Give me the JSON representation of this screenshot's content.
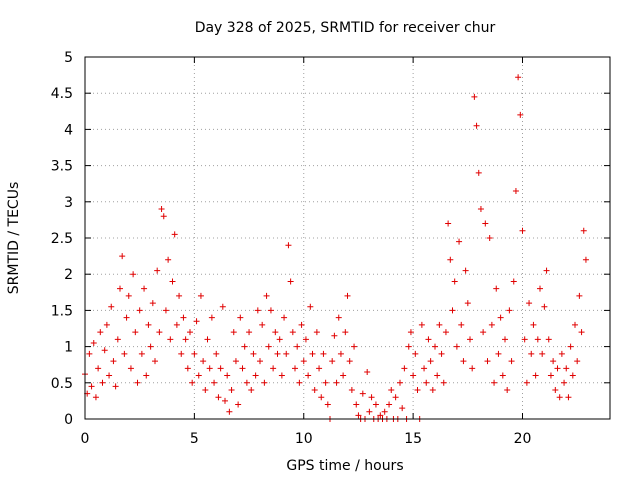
{
  "chart_data": {
    "type": "scatter",
    "title": "Day 328 of 2025, SRMTID for receiver chur",
    "xlabel": "GPS time / hours",
    "ylabel": "SRMTID / TECUs",
    "xlim": [
      0,
      24
    ],
    "ylim": [
      0,
      5
    ],
    "x_ticks": [
      0,
      5,
      10,
      15,
      20
    ],
    "x_tick_labels": [
      "0",
      "5",
      "10",
      "15",
      "20"
    ],
    "y_ticks": [
      0,
      0.5,
      1,
      1.5,
      2,
      2.5,
      3,
      3.5,
      4,
      4.5,
      5
    ],
    "y_tick_labels": [
      "0",
      "0.5",
      "1",
      "1.5",
      "2",
      "2.5",
      "3",
      "3.5",
      "4",
      "4.5",
      "5"
    ],
    "grid": true,
    "marker": "+",
    "color": "#e00000",
    "series": [
      {
        "name": "SRMTID",
        "points": [
          [
            0.0,
            0.62
          ],
          [
            0.1,
            0.35
          ],
          [
            0.2,
            0.9
          ],
          [
            0.3,
            0.45
          ],
          [
            0.4,
            1.05
          ],
          [
            0.5,
            0.3
          ],
          [
            0.6,
            0.7
          ],
          [
            0.7,
            1.2
          ],
          [
            0.8,
            0.5
          ],
          [
            0.9,
            0.95
          ],
          [
            1.0,
            1.3
          ],
          [
            1.1,
            0.6
          ],
          [
            1.2,
            1.55
          ],
          [
            1.3,
            0.8
          ],
          [
            1.4,
            0.45
          ],
          [
            1.5,
            1.1
          ],
          [
            1.6,
            1.8
          ],
          [
            1.7,
            2.25
          ],
          [
            1.8,
            0.9
          ],
          [
            1.9,
            1.4
          ],
          [
            2.0,
            1.7
          ],
          [
            2.1,
            0.7
          ],
          [
            2.2,
            2.0
          ],
          [
            2.3,
            1.2
          ],
          [
            2.4,
            0.5
          ],
          [
            2.5,
            1.5
          ],
          [
            2.6,
            0.9
          ],
          [
            2.7,
            1.8
          ],
          [
            2.8,
            0.6
          ],
          [
            2.9,
            1.3
          ],
          [
            3.0,
            1.0
          ],
          [
            3.1,
            1.6
          ],
          [
            3.2,
            0.8
          ],
          [
            3.3,
            2.05
          ],
          [
            3.4,
            1.2
          ],
          [
            3.5,
            2.9
          ],
          [
            3.6,
            2.8
          ],
          [
            3.7,
            1.5
          ],
          [
            3.8,
            2.2
          ],
          [
            3.9,
            1.1
          ],
          [
            4.0,
            1.9
          ],
          [
            4.1,
            2.55
          ],
          [
            4.2,
            1.3
          ],
          [
            4.3,
            1.7
          ],
          [
            4.4,
            0.9
          ],
          [
            4.5,
            1.4
          ],
          [
            4.6,
            1.1
          ],
          [
            4.7,
            0.7
          ],
          [
            4.8,
            1.2
          ],
          [
            4.9,
            0.5
          ],
          [
            5.0,
            0.9
          ],
          [
            5.1,
            1.35
          ],
          [
            5.2,
            0.6
          ],
          [
            5.3,
            1.7
          ],
          [
            5.4,
            0.8
          ],
          [
            5.5,
            0.4
          ],
          [
            5.6,
            1.1
          ],
          [
            5.7,
            0.7
          ],
          [
            5.8,
            1.4
          ],
          [
            5.9,
            0.5
          ],
          [
            6.0,
            0.9
          ],
          [
            6.1,
            0.3
          ],
          [
            6.2,
            0.7
          ],
          [
            6.3,
            1.55
          ],
          [
            6.4,
            0.25
          ],
          [
            6.5,
            0.6
          ],
          [
            6.6,
            0.1
          ],
          [
            6.7,
            0.4
          ],
          [
            6.8,
            1.2
          ],
          [
            6.9,
            0.8
          ],
          [
            7.0,
            0.2
          ],
          [
            7.1,
            1.4
          ],
          [
            7.2,
            0.7
          ],
          [
            7.3,
            1.0
          ],
          [
            7.4,
            0.5
          ],
          [
            7.5,
            1.2
          ],
          [
            7.6,
            0.4
          ],
          [
            7.7,
            0.9
          ],
          [
            7.8,
            0.6
          ],
          [
            7.9,
            1.5
          ],
          [
            8.0,
            0.8
          ],
          [
            8.1,
            1.3
          ],
          [
            8.2,
            0.5
          ],
          [
            8.3,
            1.7
          ],
          [
            8.4,
            1.0
          ],
          [
            8.5,
            1.5
          ],
          [
            8.6,
            0.7
          ],
          [
            8.7,
            1.2
          ],
          [
            8.8,
            0.9
          ],
          [
            8.9,
            1.1
          ],
          [
            9.0,
            0.6
          ],
          [
            9.1,
            1.4
          ],
          [
            9.2,
            0.9
          ],
          [
            9.3,
            2.4
          ],
          [
            9.4,
            1.9
          ],
          [
            9.5,
            1.2
          ],
          [
            9.6,
            0.7
          ],
          [
            9.7,
            1.0
          ],
          [
            9.8,
            0.5
          ],
          [
            9.9,
            1.3
          ],
          [
            10.0,
            0.8
          ],
          [
            10.1,
            1.1
          ],
          [
            10.2,
            0.6
          ],
          [
            10.3,
            1.55
          ],
          [
            10.4,
            0.9
          ],
          [
            10.5,
            0.4
          ],
          [
            10.6,
            1.2
          ],
          [
            10.7,
            0.7
          ],
          [
            10.8,
            0.3
          ],
          [
            10.9,
            0.9
          ],
          [
            11.0,
            0.5
          ],
          [
            11.1,
            0.2
          ],
          [
            11.2,
            0.0
          ],
          [
            11.3,
            0.8
          ],
          [
            11.4,
            1.15
          ],
          [
            11.5,
            0.5
          ],
          [
            11.6,
            1.4
          ],
          [
            11.7,
            0.9
          ],
          [
            11.8,
            0.6
          ],
          [
            11.9,
            1.2
          ],
          [
            12.0,
            1.7
          ],
          [
            12.1,
            0.8
          ],
          [
            12.2,
            0.4
          ],
          [
            12.3,
            1.0
          ],
          [
            12.4,
            0.2
          ],
          [
            12.5,
            0.05
          ],
          [
            12.6,
            0.0
          ],
          [
            12.7,
            0.35
          ],
          [
            12.8,
            0.0
          ],
          [
            12.9,
            0.65
          ],
          [
            13.0,
            0.1
          ],
          [
            13.1,
            0.3
          ],
          [
            13.2,
            0.0
          ],
          [
            13.3,
            0.2
          ],
          [
            13.4,
            0.0
          ],
          [
            13.5,
            0.05
          ],
          [
            13.6,
            0.0
          ],
          [
            13.7,
            0.1
          ],
          [
            13.8,
            0.0
          ],
          [
            13.9,
            0.2
          ],
          [
            14.0,
            0.4
          ],
          [
            14.1,
            0.0
          ],
          [
            14.2,
            0.3
          ],
          [
            14.3,
            0.0
          ],
          [
            14.4,
            0.5
          ],
          [
            14.5,
            0.15
          ],
          [
            14.6,
            0.7
          ],
          [
            14.7,
            0.0
          ],
          [
            14.8,
            1.0
          ],
          [
            14.9,
            1.2
          ],
          [
            15.0,
            0.6
          ],
          [
            15.1,
            0.9
          ],
          [
            15.2,
            0.4
          ],
          [
            15.3,
            0.0
          ],
          [
            15.4,
            1.3
          ],
          [
            15.5,
            0.7
          ],
          [
            15.6,
            0.5
          ],
          [
            15.7,
            1.1
          ],
          [
            15.8,
            0.8
          ],
          [
            15.9,
            0.4
          ],
          [
            16.0,
            1.0
          ],
          [
            16.1,
            0.6
          ],
          [
            16.2,
            1.3
          ],
          [
            16.3,
            0.9
          ],
          [
            16.4,
            0.5
          ],
          [
            16.5,
            1.2
          ],
          [
            16.6,
            2.7
          ],
          [
            16.7,
            2.2
          ],
          [
            16.8,
            1.5
          ],
          [
            16.9,
            1.9
          ],
          [
            17.0,
            1.0
          ],
          [
            17.1,
            2.45
          ],
          [
            17.2,
            1.3
          ],
          [
            17.3,
            0.8
          ],
          [
            17.4,
            2.05
          ],
          [
            17.5,
            1.6
          ],
          [
            17.6,
            1.1
          ],
          [
            17.7,
            0.7
          ],
          [
            17.8,
            4.45
          ],
          [
            17.9,
            4.05
          ],
          [
            18.0,
            3.4
          ],
          [
            18.1,
            2.9
          ],
          [
            18.2,
            1.2
          ],
          [
            18.3,
            2.7
          ],
          [
            18.4,
            0.8
          ],
          [
            18.5,
            2.5
          ],
          [
            18.6,
            1.3
          ],
          [
            18.7,
            0.5
          ],
          [
            18.8,
            1.8
          ],
          [
            18.9,
            0.9
          ],
          [
            19.0,
            1.4
          ],
          [
            19.1,
            0.6
          ],
          [
            19.2,
            1.1
          ],
          [
            19.3,
            0.4
          ],
          [
            19.4,
            1.5
          ],
          [
            19.5,
            0.8
          ],
          [
            19.6,
            1.9
          ],
          [
            19.7,
            3.15
          ],
          [
            19.8,
            4.72
          ],
          [
            19.9,
            4.2
          ],
          [
            20.0,
            2.6
          ],
          [
            20.1,
            1.1
          ],
          [
            20.2,
            0.5
          ],
          [
            20.3,
            1.6
          ],
          [
            20.4,
            0.9
          ],
          [
            20.5,
            1.3
          ],
          [
            20.6,
            0.6
          ],
          [
            20.7,
            1.1
          ],
          [
            20.8,
            1.8
          ],
          [
            20.9,
            0.9
          ],
          [
            21.0,
            1.55
          ],
          [
            21.1,
            2.05
          ],
          [
            21.2,
            1.1
          ],
          [
            21.3,
            0.6
          ],
          [
            21.4,
            0.8
          ],
          [
            21.5,
            0.4
          ],
          [
            21.6,
            0.7
          ],
          [
            21.7,
            0.3
          ],
          [
            21.8,
            0.9
          ],
          [
            21.9,
            0.5
          ],
          [
            22.0,
            0.7
          ],
          [
            22.1,
            0.3
          ],
          [
            22.2,
            1.0
          ],
          [
            22.3,
            0.6
          ],
          [
            22.4,
            1.3
          ],
          [
            22.5,
            0.8
          ],
          [
            22.6,
            1.7
          ],
          [
            22.7,
            1.2
          ],
          [
            22.8,
            2.6
          ],
          [
            22.9,
            2.2
          ]
        ]
      }
    ]
  }
}
